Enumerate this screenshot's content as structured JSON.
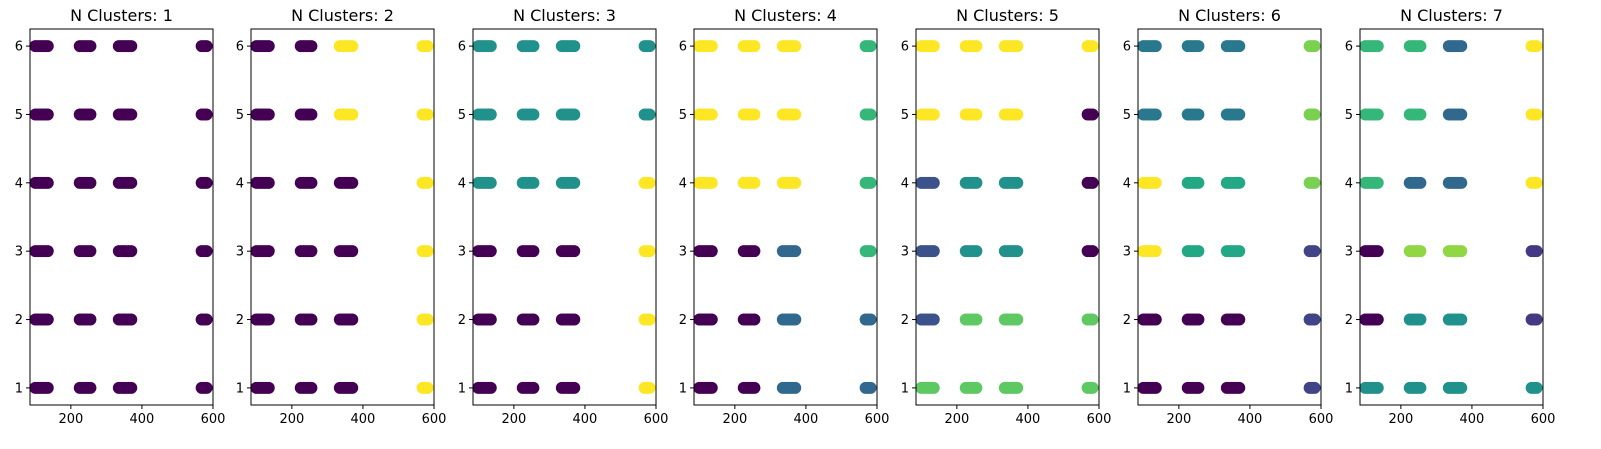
{
  "chart_data": [
    {
      "type": "scatter",
      "title": "N Clusters: 1",
      "xlim": [
        85,
        600
      ],
      "ylim": [
        0.75,
        6.25
      ],
      "xticks": [
        200,
        400,
        600
      ],
      "yticks": [
        1,
        2,
        3,
        4,
        5,
        6
      ],
      "grid": false,
      "legend": "none",
      "columns": [
        {
          "x": [
            100,
            135
          ],
          "labels": [
            0,
            0,
            0,
            0,
            0,
            0
          ]
        },
        {
          "x": [
            225,
            255
          ],
          "labels": [
            0,
            0,
            0,
            0,
            0,
            0
          ]
        },
        {
          "x": [
            335,
            370
          ],
          "labels": [
            0,
            0,
            0,
            0,
            0,
            0
          ]
        },
        {
          "x": [
            568,
            582
          ],
          "labels": [
            0,
            0,
            0,
            0,
            0,
            0
          ]
        }
      ],
      "cluster_colors": [
        "#440154"
      ]
    },
    {
      "type": "scatter",
      "title": "N Clusters: 2",
      "xlim": [
        85,
        600
      ],
      "ylim": [
        0.75,
        6.25
      ],
      "xticks": [
        200,
        400,
        600
      ],
      "yticks": [
        1,
        2,
        3,
        4,
        5,
        6
      ],
      "grid": false,
      "legend": "none",
      "columns": [
        {
          "x": [
            100,
            135
          ],
          "labels": [
            0,
            0,
            0,
            0,
            0,
            0
          ]
        },
        {
          "x": [
            225,
            255
          ],
          "labels": [
            0,
            0,
            0,
            0,
            0,
            0
          ]
        },
        {
          "x": [
            335,
            370
          ],
          "labels": [
            0,
            0,
            0,
            0,
            1,
            1
          ]
        },
        {
          "x": [
            568,
            582
          ],
          "labels": [
            1,
            1,
            1,
            1,
            1,
            1
          ]
        }
      ],
      "cluster_colors": [
        "#440154",
        "#fde725"
      ]
    },
    {
      "type": "scatter",
      "title": "N Clusters: 3",
      "xlim": [
        85,
        600
      ],
      "ylim": [
        0.75,
        6.25
      ],
      "xticks": [
        200,
        400,
        600
      ],
      "yticks": [
        1,
        2,
        3,
        4,
        5,
        6
      ],
      "grid": false,
      "legend": "none",
      "columns": [
        {
          "x": [
            100,
            135
          ],
          "labels": [
            0,
            0,
            0,
            1,
            1,
            1
          ]
        },
        {
          "x": [
            225,
            255
          ],
          "labels": [
            0,
            0,
            0,
            1,
            1,
            1
          ]
        },
        {
          "x": [
            335,
            370
          ],
          "labels": [
            0,
            0,
            0,
            1,
            1,
            1
          ]
        },
        {
          "x": [
            568,
            582
          ],
          "labels": [
            2,
            2,
            2,
            2,
            1,
            1
          ]
        }
      ],
      "cluster_colors": [
        "#440154",
        "#21918c",
        "#fde725"
      ]
    },
    {
      "type": "scatter",
      "title": "N Clusters: 4",
      "xlim": [
        85,
        600
      ],
      "ylim": [
        0.75,
        6.25
      ],
      "xticks": [
        200,
        400,
        600
      ],
      "yticks": [
        1,
        2,
        3,
        4,
        5,
        6
      ],
      "grid": false,
      "legend": "none",
      "columns": [
        {
          "x": [
            100,
            135
          ],
          "labels": [
            0,
            0,
            0,
            3,
            3,
            3
          ]
        },
        {
          "x": [
            225,
            255
          ],
          "labels": [
            0,
            0,
            0,
            3,
            3,
            3
          ]
        },
        {
          "x": [
            335,
            370
          ],
          "labels": [
            1,
            1,
            1,
            3,
            3,
            3
          ]
        },
        {
          "x": [
            568,
            582
          ],
          "labels": [
            1,
            1,
            2,
            2,
            2,
            2
          ]
        }
      ],
      "cluster_colors": [
        "#440154",
        "#31688e",
        "#35b779",
        "#fde725"
      ]
    },
    {
      "type": "scatter",
      "title": "N Clusters: 5",
      "xlim": [
        85,
        600
      ],
      "ylim": [
        0.75,
        6.25
      ],
      "xticks": [
        200,
        400,
        600
      ],
      "yticks": [
        1,
        2,
        3,
        4,
        5,
        6
      ],
      "grid": false,
      "legend": "none",
      "columns": [
        {
          "x": [
            100,
            135
          ],
          "labels": [
            3,
            1,
            1,
            1,
            4,
            4
          ]
        },
        {
          "x": [
            225,
            255
          ],
          "labels": [
            3,
            3,
            2,
            2,
            4,
            4
          ]
        },
        {
          "x": [
            335,
            370
          ],
          "labels": [
            3,
            3,
            2,
            2,
            4,
            4
          ]
        },
        {
          "x": [
            568,
            582
          ],
          "labels": [
            3,
            3,
            0,
            0,
            0,
            4
          ]
        }
      ],
      "cluster_colors": [
        "#440154",
        "#3b528b",
        "#21918c",
        "#5ec962",
        "#fde725"
      ]
    },
    {
      "type": "scatter",
      "title": "N Clusters: 6",
      "xlim": [
        85,
        600
      ],
      "ylim": [
        0.75,
        6.25
      ],
      "xticks": [
        200,
        400,
        600
      ],
      "yticks": [
        1,
        2,
        3,
        4,
        5,
        6
      ],
      "grid": false,
      "legend": "none",
      "columns": [
        {
          "x": [
            100,
            135
          ],
          "labels": [
            0,
            0,
            5,
            5,
            2,
            2
          ]
        },
        {
          "x": [
            225,
            255
          ],
          "labels": [
            0,
            0,
            3,
            3,
            2,
            2
          ]
        },
        {
          "x": [
            335,
            370
          ],
          "labels": [
            0,
            0,
            3,
            3,
            2,
            2
          ]
        },
        {
          "x": [
            568,
            582
          ],
          "labels": [
            1,
            1,
            1,
            4,
            4,
            4
          ]
        }
      ],
      "cluster_colors": [
        "#440154",
        "#414487",
        "#2a788e",
        "#22a884",
        "#7ad151",
        "#fde725"
      ]
    },
    {
      "type": "scatter",
      "title": "N Clusters: 7",
      "xlim": [
        85,
        600
      ],
      "ylim": [
        0.75,
        6.25
      ],
      "xticks": [
        200,
        400,
        600
      ],
      "yticks": [
        1,
        2,
        3,
        4,
        5,
        6
      ],
      "grid": false,
      "legend": "none",
      "columns": [
        {
          "x": [
            100,
            135
          ],
          "labels": [
            3,
            0,
            0,
            4,
            4,
            4
          ]
        },
        {
          "x": [
            225,
            255
          ],
          "labels": [
            3,
            3,
            5,
            2,
            4,
            4
          ]
        },
        {
          "x": [
            335,
            370
          ],
          "labels": [
            3,
            3,
            5,
            2,
            2,
            2
          ]
        },
        {
          "x": [
            568,
            582
          ],
          "labels": [
            3,
            1,
            1,
            6,
            6,
            6
          ]
        }
      ],
      "cluster_colors": [
        "#440154",
        "#443983",
        "#31688e",
        "#21918c",
        "#35b779",
        "#90d743",
        "#fde725"
      ]
    }
  ]
}
